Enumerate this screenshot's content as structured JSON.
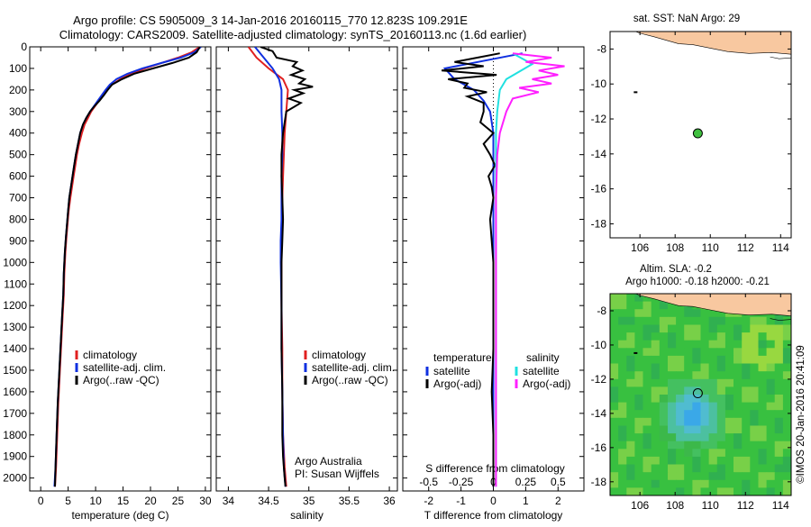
{
  "header": {
    "title_line1": "Argo profile: CS 5905009_3 14-Jan-2016 20160115_770 12.823S 109.291E",
    "title_line2": "Climatology: CARS2009. Satellite-adjusted climatology: synTS_20160113.nc (1.6d earlier)"
  },
  "side_label": "©IMOS 20-Jan-2016 20:41:09",
  "colors": {
    "climatology": "#e02020",
    "satellite": "#1030e0",
    "argo": "#000000",
    "salinity_satellite": "#20e0e0",
    "salinity_argo": "#ff20ff",
    "land": "#f8c8a0",
    "ocean_green": "#38c040",
    "float_marker": "#40c040"
  },
  "chart_data": [
    {
      "id": "temperature",
      "type": "line",
      "xlabel": "temperature (deg C)",
      "ylabel": "",
      "xlim": [
        -2,
        31
      ],
      "ylim": [
        2060,
        0
      ],
      "y_inverted": true,
      "xticks": [
        0,
        5,
        10,
        15,
        20,
        25,
        30
      ],
      "yticks": [
        0,
        100,
        200,
        300,
        400,
        500,
        600,
        700,
        800,
        900,
        1000,
        1100,
        1200,
        1300,
        1400,
        1500,
        1600,
        1700,
        1800,
        1900,
        2000
      ],
      "legend": [
        "climatology",
        "satellite-adj. clim.",
        "Argo(..raw -QC)"
      ],
      "series": [
        {
          "name": "climatology",
          "x": [
            29.0,
            27.5,
            25.0,
            22.0,
            19.0,
            16.5,
            14.5,
            13.0,
            12.0,
            11.3,
            10.6,
            9.9,
            9.2,
            8.6,
            8.0,
            7.5,
            7.0,
            6.6,
            6.3,
            6.0,
            5.7,
            5.4,
            5.1,
            4.9,
            4.7,
            4.5,
            4.3,
            4.2,
            4.0,
            3.8,
            3.6,
            3.4,
            3.2,
            3.0,
            2.8,
            2.6
          ],
          "y": [
            0,
            25,
            50,
            75,
            100,
            125,
            150,
            175,
            200,
            225,
            250,
            275,
            300,
            330,
            360,
            400,
            450,
            500,
            550,
            600,
            650,
            700,
            760,
            820,
            880,
            950,
            1050,
            1150,
            1250,
            1350,
            1450,
            1550,
            1650,
            1800,
            1950,
            2040
          ]
        },
        {
          "name": "satellite-adj. clim.",
          "x": [
            29.2,
            28.0,
            25.5,
            22.0,
            18.5,
            15.8,
            13.8,
            12.6,
            11.8,
            11.1,
            10.4,
            9.7,
            9.0,
            8.3,
            7.7,
            7.2,
            6.8,
            6.4,
            6.1,
            5.8,
            5.5,
            5.2,
            5.0,
            4.8,
            4.6,
            4.4,
            4.2,
            4.1,
            3.9,
            3.7,
            3.5,
            3.3,
            3.1,
            2.9,
            2.7,
            2.5
          ],
          "y": [
            0,
            25,
            50,
            75,
            100,
            125,
            150,
            175,
            200,
            225,
            250,
            275,
            300,
            330,
            360,
            400,
            450,
            500,
            550,
            600,
            650,
            700,
            760,
            820,
            880,
            950,
            1050,
            1150,
            1250,
            1350,
            1450,
            1550,
            1650,
            1800,
            1950,
            2040
          ]
        },
        {
          "name": "Argo(..raw -QC)",
          "x": [
            29.0,
            28.4,
            27.0,
            24.0,
            20.5,
            17.0,
            14.8,
            13.0,
            12.2,
            11.5,
            10.7,
            9.8,
            9.0,
            8.3,
            7.7,
            7.2,
            6.8,
            6.4,
            6.1,
            5.8,
            5.5,
            5.2,
            5.0,
            4.8,
            4.6,
            4.4,
            4.2,
            4.1,
            3.9,
            3.7,
            3.5,
            3.3,
            3.1,
            2.9,
            2.7,
            2.6
          ],
          "y": [
            0,
            25,
            50,
            75,
            100,
            125,
            150,
            175,
            200,
            225,
            250,
            275,
            300,
            330,
            360,
            400,
            450,
            500,
            550,
            600,
            650,
            700,
            760,
            820,
            880,
            950,
            1050,
            1150,
            1250,
            1350,
            1450,
            1550,
            1650,
            1800,
            1950,
            2040
          ]
        }
      ]
    },
    {
      "id": "salinity",
      "type": "line",
      "xlabel": "salinity",
      "xlim": [
        33.85,
        36.1
      ],
      "ylim": [
        2060,
        0
      ],
      "y_inverted": true,
      "xticks": [
        34,
        34.5,
        35,
        35.5,
        36
      ],
      "legend": [
        "climatology",
        "satellite-adj. clim.",
        "Argo(..raw -QC)"
      ],
      "annotations": [
        "Argo Australia",
        "PI: Susan Wijffels"
      ],
      "series": [
        {
          "name": "climatology",
          "x": [
            34.25,
            34.35,
            34.5,
            34.68,
            34.74,
            34.72,
            34.7,
            34.69,
            34.68,
            34.67,
            34.67,
            34.66,
            34.66,
            34.66,
            34.67,
            34.67,
            34.68,
            34.7,
            34.72
          ],
          "y": [
            0,
            50,
            100,
            150,
            200,
            300,
            400,
            500,
            600,
            700,
            800,
            900,
            1000,
            1200,
            1400,
            1600,
            1800,
            1950,
            2040
          ]
        },
        {
          "name": "satellite-adj. clim.",
          "x": [
            34.33,
            34.44,
            34.55,
            34.63,
            34.66,
            34.66,
            34.67,
            34.67,
            34.66,
            34.66,
            34.66,
            34.65,
            34.65,
            34.66,
            34.66,
            34.67,
            34.68,
            34.69,
            34.71
          ],
          "y": [
            0,
            50,
            100,
            150,
            200,
            300,
            400,
            500,
            600,
            700,
            800,
            900,
            1000,
            1200,
            1400,
            1600,
            1800,
            1950,
            2040
          ]
        },
        {
          "name": "Argo(..raw -QC)",
          "x": [
            34.4,
            34.55,
            34.6,
            34.85,
            34.8,
            34.92,
            34.78,
            34.95,
            34.88,
            35.05,
            34.82,
            34.93,
            34.75,
            34.9,
            34.72,
            34.68,
            34.66,
            34.66,
            34.67,
            34.68,
            34.67,
            34.66,
            34.66,
            34.66,
            34.66,
            34.67,
            34.67,
            34.68,
            34.7,
            34.71
          ],
          "y": [
            0,
            20,
            50,
            70,
            90,
            110,
            130,
            150,
            170,
            185,
            200,
            215,
            240,
            260,
            300,
            400,
            500,
            600,
            700,
            800,
            900,
            1000,
            1100,
            1200,
            1400,
            1600,
            1800,
            1900,
            2000,
            2040
          ]
        }
      ]
    },
    {
      "id": "difference",
      "type": "line",
      "xlabel": "T difference from climatology",
      "xlabel_top": "S difference from climatology",
      "xlim": [
        -2.8,
        2.8
      ],
      "ylim": [
        2060,
        0
      ],
      "y_inverted": true,
      "xticks": [
        -2,
        -1,
        0,
        1,
        2
      ],
      "xticks_top": [
        -0.5,
        -0.25,
        0,
        0.25,
        0.5
      ],
      "legend_left_title": "temperature",
      "legend_right_title": "salinity",
      "legend_left": [
        "satellite",
        "Argo(-adj)"
      ],
      "legend_right": [
        "satellite",
        "Argo(-adj)"
      ],
      "series": [
        {
          "name": "temperature satellite",
          "x": [
            0.9,
            -1.5,
            -1.2,
            -0.6,
            -0.3,
            -0.1,
            0.0,
            0.0,
            0.0,
            0.0,
            0.0,
            0.0,
            0.0,
            0.0,
            0.0,
            0.0,
            0.0,
            0.0
          ],
          "y": [
            30,
            100,
            150,
            200,
            250,
            300,
            400,
            500,
            600,
            700,
            800,
            1000,
            1200,
            1400,
            1600,
            1800,
            1950,
            2040
          ]
        },
        {
          "name": "temperature Argo(-adj)",
          "x": [
            0.2,
            -0.5,
            -1.2,
            -0.3,
            -1.6,
            0.1,
            -1.4,
            -0.8,
            -0.9,
            -0.2,
            -0.8,
            -0.3,
            -0.3,
            -0.4,
            0.0,
            -0.3,
            -0.1,
            0.05,
            -0.15,
            -0.05,
            0.0,
            -0.1,
            -0.05,
            0.0,
            0.0,
            0.0,
            -0.05,
            0.0,
            0.0
          ],
          "y": [
            30,
            50,
            70,
            90,
            110,
            130,
            150,
            170,
            190,
            210,
            230,
            260,
            300,
            350,
            400,
            450,
            500,
            550,
            600,
            650,
            700,
            800,
            900,
            1000,
            1200,
            1400,
            1600,
            1800,
            2040
          ]
        },
        {
          "name": "salinity satellite",
          "x": [
            0.15,
            0.3,
            0.1,
            0.05,
            0.03,
            0.02,
            0.02,
            0.02,
            0.02,
            0.02,
            0.02,
            0.02,
            0.02,
            0.02,
            0.02,
            0.02,
            0.02
          ],
          "y": [
            30,
            80,
            150,
            200,
            300,
            400,
            500,
            600,
            700,
            800,
            1000,
            1200,
            1400,
            1600,
            1800,
            1950,
            2040
          ]
        },
        {
          "name": "salinity Argo(-adj)",
          "x": [
            0.15,
            0.45,
            0.25,
            0.55,
            0.35,
            0.5,
            0.3,
            0.45,
            0.2,
            0.35,
            0.15,
            0.1,
            0.05,
            0.03,
            0.02,
            0.02,
            0.02,
            0.02
          ],
          "y": [
            30,
            50,
            70,
            90,
            110,
            130,
            150,
            170,
            190,
            210,
            240,
            300,
            400,
            500,
            700,
            900,
            1200,
            2040
          ]
        }
      ]
    }
  ],
  "map_top": {
    "title": "sat. SST: NaN Argo: 29",
    "xticks": [
      106,
      108,
      110,
      112,
      114
    ],
    "yticks": [
      -8,
      -10,
      -12,
      -14,
      -16,
      -18
    ],
    "xlim": [
      104.3,
      114.6
    ],
    "ylim": [
      -18.8,
      -7.0
    ],
    "argo_float": {
      "lon": 109.291,
      "lat": -12.823
    }
  },
  "map_bottom": {
    "title_line1": "Altim. SLA: -0.2",
    "title_line2": "Argo h1000: -0.18 h2000: -0.21",
    "xticks": [
      106,
      108,
      110,
      112,
      114
    ],
    "yticks": [
      -8,
      -10,
      -12,
      -14,
      -16,
      -18
    ],
    "xlim": [
      104.3,
      114.6
    ],
    "ylim": [
      -18.8,
      -7.0
    ],
    "argo_float": {
      "lon": 109.291,
      "lat": -12.823
    }
  }
}
